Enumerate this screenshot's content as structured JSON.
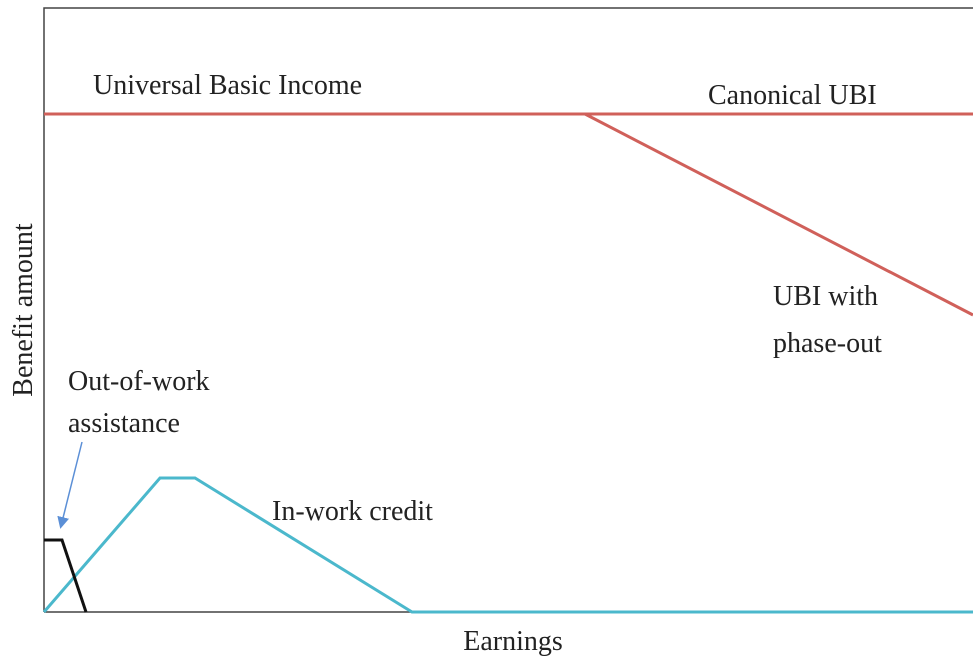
{
  "labels": {
    "ubi": "Universal Basic Income",
    "canonical": "Canonical UBI",
    "phaseout": [
      "UBI with",
      "phase-out"
    ],
    "outofwork": [
      "Out-of-work",
      "assistance"
    ],
    "inwork": "In-work credit"
  },
  "axes": {
    "x_label": "Earnings",
    "y_label": "Benefit amount"
  }
}
